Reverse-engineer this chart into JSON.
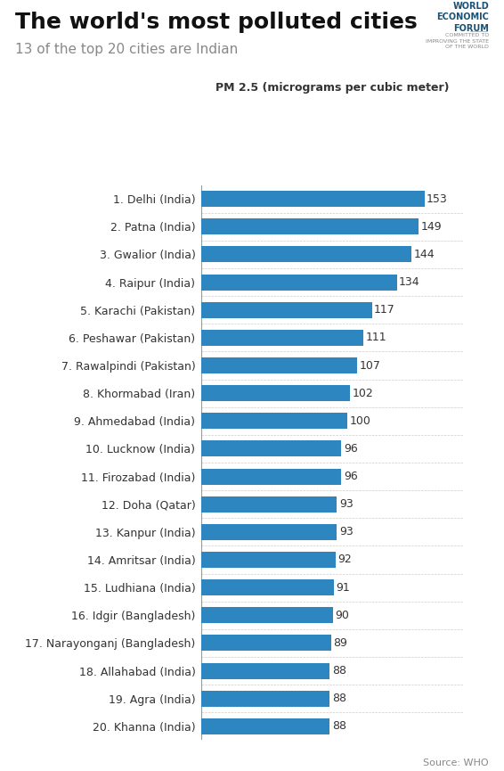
{
  "title": "The world's most polluted cities",
  "subtitle": "13 of the top 20 cities are Indian",
  "xlabel": "PM 2.5 (micrograms per cubic meter)",
  "source": "Source: WHO",
  "bar_color": "#2E86C1",
  "background_color": "#FFFFFF",
  "categories": [
    "1. Delhi (India)",
    "2. Patna (India)",
    "3. Gwalior (India)",
    "4. Raipur (India)",
    "5. Karachi (Pakistan)",
    "6. Peshawar (Pakistan)",
    "7. Rawalpindi (Pakistan)",
    "8. Khormabad (Iran)",
    "9. Ahmedabad (India)",
    "10. Lucknow (India)",
    "11. Firozabad (India)",
    "12. Doha (Qatar)",
    "13. Kanpur (India)",
    "14. Amritsar (India)",
    "15. Ludhiana (India)",
    "16. Idgir (Bangladesh)",
    "17. Narayonganj (Bangladesh)",
    "18. Allahabad (India)",
    "19. Agra (India)",
    "20. Khanna (India)"
  ],
  "values": [
    153,
    149,
    144,
    134,
    117,
    111,
    107,
    102,
    100,
    96,
    96,
    93,
    93,
    92,
    91,
    90,
    89,
    88,
    88,
    88
  ],
  "title_fontsize": 18,
  "subtitle_fontsize": 11,
  "label_fontsize": 9,
  "value_fontsize": 9,
  "xlabel_fontsize": 9,
  "source_fontsize": 8,
  "wef_fontsize": 7,
  "wef_sub_fontsize": 4.5
}
